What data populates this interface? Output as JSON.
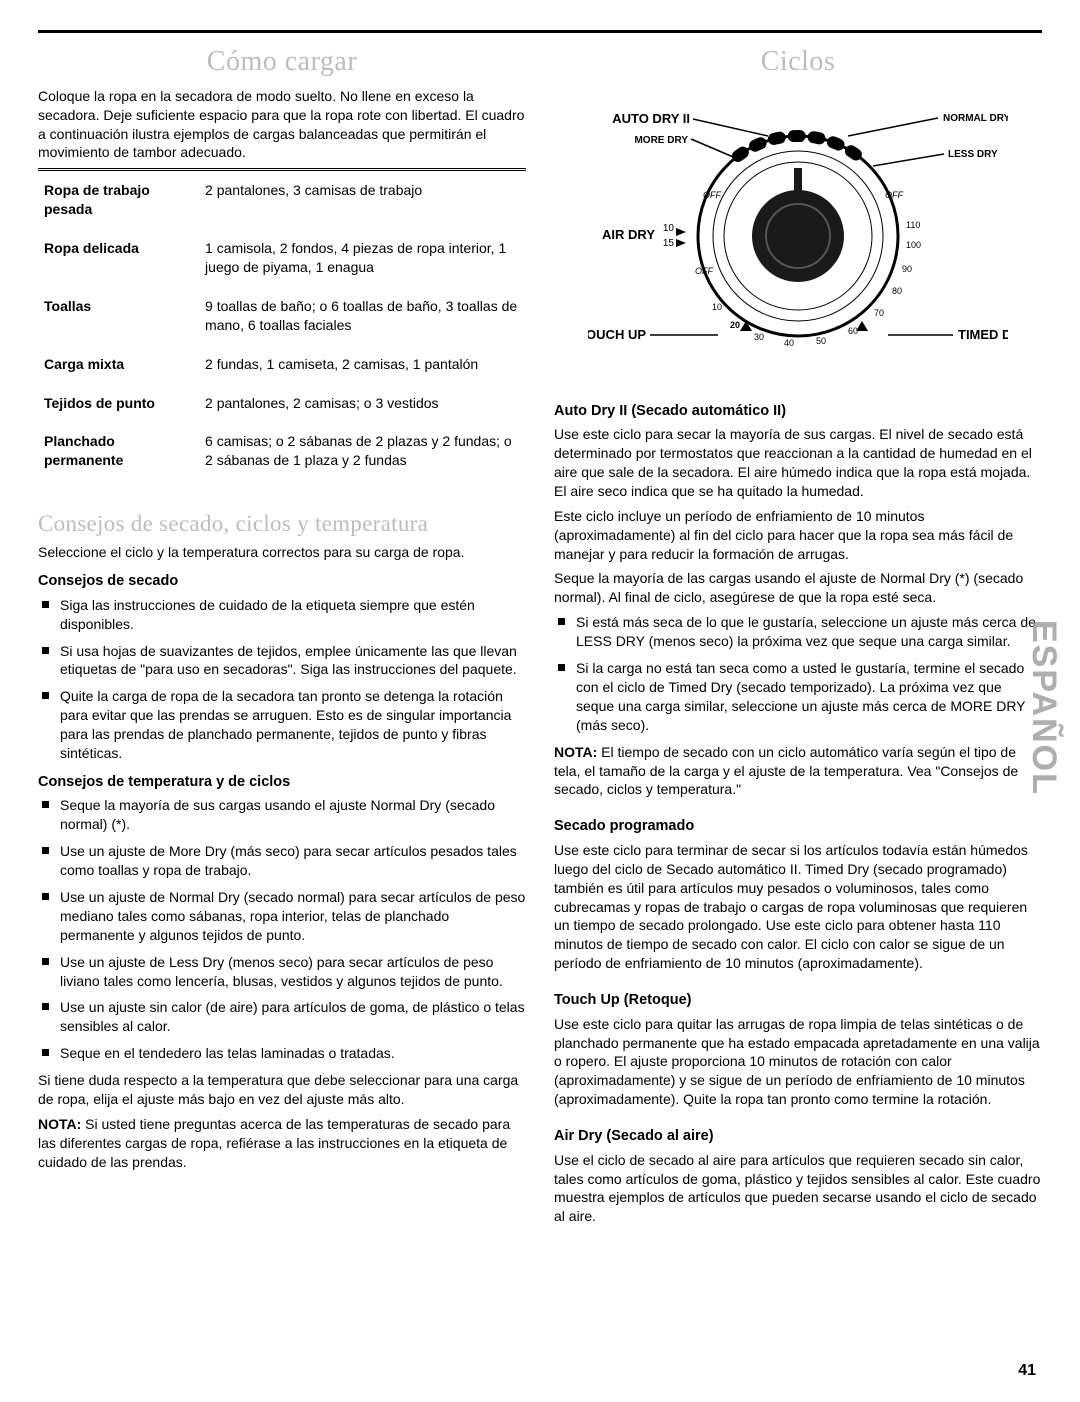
{
  "pageNumber": "41",
  "sideLabel": "ESPAÑOL",
  "left": {
    "h_load": "Cómo cargar",
    "intro": "Coloque la ropa en la secadora de modo suelto. No llene en exceso la secadora. Deje suficiente espacio para que la ropa rote con libertad. El cuadro a continuación ilustra ejemplos de cargas balanceadas que permitirán el movimiento de tambor adecuado.",
    "table": [
      {
        "k": "Ropa de trabajo pesada",
        "v": "2 pantalones, 3 camisas de trabajo"
      },
      {
        "k": "Ropa delicada",
        "v": "1 camisola, 2 fondos, 4 piezas de ropa interior, 1 juego de piyama, 1 enagua"
      },
      {
        "k": "Toallas",
        "v": "9 toallas de baño; o 6 toallas de baño, 3 toallas de mano, 6 toallas faciales"
      },
      {
        "k": "Carga mixta",
        "v": "2 fundas, 1 camiseta, 2 camisas, 1 pantalón"
      },
      {
        "k": "Tejidos de punto",
        "v": "2 pantalones, 2 camisas; o 3 vestidos"
      },
      {
        "k": "Planchado permanente",
        "v": "6 camisas; o 2 sábanas de 2 plazas y 2 fundas; o 2 sábanas de 1 plaza y 2 fundas"
      }
    ],
    "h_tips": "Consejos de secado, ciclos y temperatura",
    "tips_intro": "Seleccione el ciclo y la temperatura correctos para su carga de ropa.",
    "h_drytips": "Consejos de secado",
    "drytips": [
      "Siga las instrucciones de cuidado de la etiqueta siempre que estén disponibles.",
      "Si usa hojas de suavizantes de tejidos, emplee únicamente las que llevan etiquetas de \"para uso en secadoras\". Siga las instrucciones del paquete.",
      "Quite la carga de ropa de la secadora tan pronto se detenga la rotación para evitar que las prendas se arruguen. Esto es de singular importancia para las prendas de planchado permanente, tejidos de punto y fibras sintéticas."
    ],
    "h_temptips": "Consejos de temperatura y de ciclos",
    "temptips": [
      "Seque la mayoría de sus cargas usando el ajuste Normal Dry (secado normal) (*).",
      "Use un ajuste de More Dry (más seco) para secar artículos pesados tales como toallas y ropa de trabajo.",
      "Use un ajuste de Normal Dry (secado normal) para secar artículos de peso mediano tales como sábanas, ropa interior, telas de planchado permanente y algunos tejidos de punto.",
      "Use un ajuste de Less Dry (menos seco) para secar artículos de peso liviano tales como lencería, blusas, vestidos y algunos tejidos de punto.",
      "Use un ajuste sin calor (de aire) para artículos de goma, de plástico o telas sensibles al calor.",
      "Seque en el tendedero las telas laminadas o tratadas."
    ],
    "doubt": "Si tiene duda respecto a la temperatura que debe seleccionar para una carga de ropa, elija el ajuste más bajo en vez del ajuste más alto.",
    "notaLabel": "NOTA:",
    "nota": " Si usted tiene preguntas acerca de las temperaturas de secado para las diferentes cargas de ropa, refiérase a las instrucciones en la etiqueta de cuidado de las prendas."
  },
  "right": {
    "h_cycles": "Ciclos",
    "dial": {
      "outer_labels": {
        "auto": "AUTO DRY II",
        "more": "MORE DRY",
        "normal": "NORMAL DRY",
        "less": "LESS DRY",
        "air": "AIR DRY",
        "touch": "TOUCH UP",
        "timed": "TIMED DRY"
      },
      "rim": {
        "off1": "OFF",
        "off2": "OFF",
        "off3": "OFF",
        "a10": "10",
        "a15": "15",
        "t10": "10",
        "t20": "20",
        "t30": "30",
        "t40": "40",
        "t50": "50",
        "t60": "60",
        "t70": "70",
        "t80": "80",
        "t90": "90",
        "t100": "100",
        "t110": "110"
      }
    },
    "h_auto": "Auto Dry II (Secado automático II)",
    "auto_p1": "Use este ciclo para secar la mayoría de sus cargas. El nivel de secado está determinado por termostatos que reaccionan a la cantidad de humedad en el aire que sale de la secadora. El aire húmedo indica que la ropa está mojada. El aire seco indica que se ha quitado la humedad.",
    "auto_p2": "Este ciclo incluye un período de enfriamiento de 10 minutos (aproximadamente) al fin del ciclo para hacer que la ropa sea más fácil de manejar y para reducir la formación de arrugas.",
    "auto_p3": "Seque la mayoría de las cargas usando el ajuste de Normal Dry (*) (secado normal). Al final de ciclo, asegúrese de que la ropa esté seca.",
    "auto_bullets": [
      "Si está más seca de lo que le gustaría, seleccione un ajuste más cerca de LESS DRY (menos seco) la próxima vez que seque una carga similar.",
      "Si la carga no está tan seca como a usted le gustaría, termine el secado con el ciclo de Timed Dry (secado temporizado). La próxima vez que seque una carga similar, seleccione un ajuste más cerca de MORE DRY (más seco)."
    ],
    "auto_nota_label": "NOTA:",
    "auto_nota": " El tiempo de secado con un ciclo automático varía según el tipo de tela, el tamaño de la carga y el ajuste de la temperatura. Vea \"Consejos de secado, ciclos y temperatura.\"",
    "h_timed": "Secado programado",
    "timed_p": "Use este ciclo para terminar de secar si los artículos todavía están húmedos luego del ciclo de Secado automático II. Timed Dry (secado programado) también es útil para artículos muy pesados o voluminosos, tales como cubrecamas y ropas de trabajo o cargas de ropa voluminosas que requieren un tiempo de secado prolongado. Use este ciclo para obtener hasta 110 minutos de tiempo de secado con calor. El ciclo con calor se sigue de un período de enfriamiento de 10 minutos (aproximadamente).",
    "h_touch": "Touch Up (Retoque)",
    "touch_p": "Use este ciclo para quitar las arrugas de ropa limpia de telas sintéticas o de planchado permanente que ha estado empacada apretadamente en una valija o ropero. El ajuste proporciona 10 minutos de rotación con calor (aproximadamente) y se sigue de un período de enfriamiento de 10 minutos (aproximadamente). Quite la ropa tan pronto como termine la rotación.",
    "h_air": "Air Dry (Secado al aire)",
    "air_p": "Use el ciclo de secado al aire para artículos que requieren secado sin calor, tales como artículos de goma, plástico y tejidos sensibles al calor. Este cuadro muestra ejemplos de artículos que pueden secarse usando el ciclo de secado al aire."
  }
}
